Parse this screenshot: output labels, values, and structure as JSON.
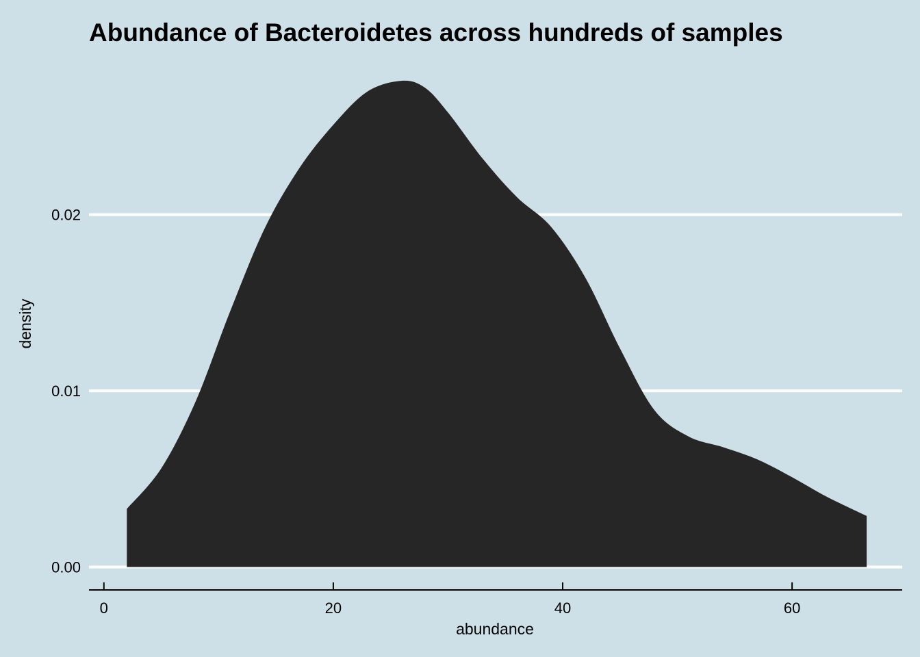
{
  "chart_data": {
    "type": "area",
    "title": "Abundance of Bacteroidetes across hundreds of samples",
    "xlabel": "abundance",
    "ylabel": "density",
    "xlim": [
      -1.3,
      69.6
    ],
    "ylim": [
      -0.0013,
      0.029
    ],
    "x_ticks": [
      0,
      20,
      40,
      60
    ],
    "x_tick_labels": [
      "0",
      "20",
      "40",
      "60"
    ],
    "y_ticks": [
      0.0,
      0.01,
      0.02
    ],
    "y_tick_labels": [
      "0.00",
      "0.01",
      "0.02"
    ],
    "grid": "horizontal major only",
    "colors": {
      "background": "#cde0e7",
      "fill": "#262626",
      "grid": "#ffffff"
    },
    "x": [
      2.0,
      5.0,
      8.0,
      11.0,
      14.0,
      17.0,
      20.0,
      23.0,
      26.0,
      28.0,
      30.0,
      33.0,
      36.0,
      39.0,
      42.0,
      45.0,
      48.0,
      51.0,
      54.0,
      57.0,
      60.0,
      63.0,
      66.5
    ],
    "y": [
      0.0033,
      0.0056,
      0.0094,
      0.0145,
      0.0192,
      0.0226,
      0.0251,
      0.027,
      0.0276,
      0.0272,
      0.0258,
      0.0232,
      0.021,
      0.0193,
      0.0164,
      0.0124,
      0.0089,
      0.0074,
      0.0068,
      0.0061,
      0.0051,
      0.004,
      0.0029
    ]
  }
}
